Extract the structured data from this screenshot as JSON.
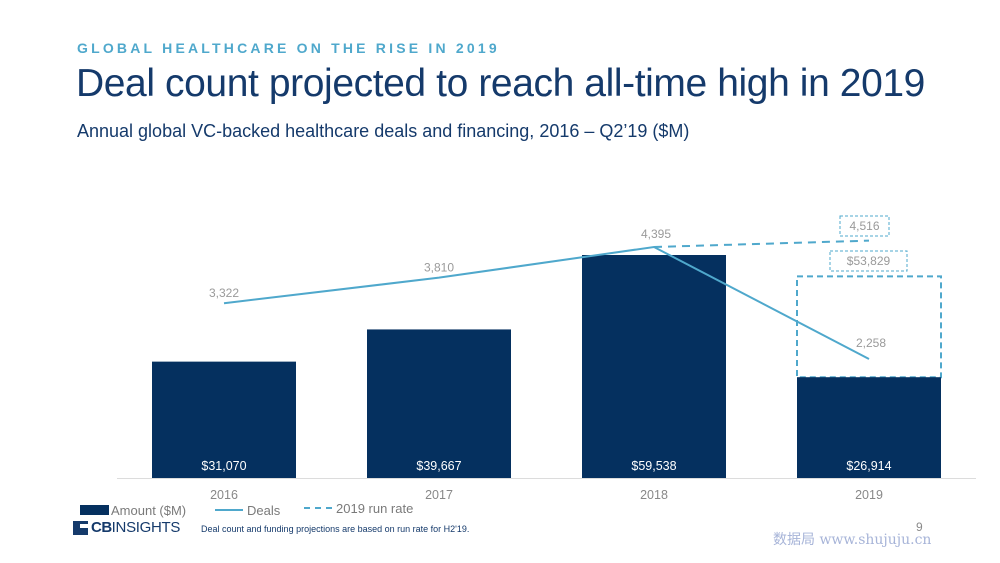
{
  "header": {
    "kicker": "GLOBAL HEALTHCARE ON THE RISE IN 2019",
    "title": "Deal count projected to reach all-time high in 2019",
    "subtitle": "Annual global VC-backed healthcare deals and financing, 2016 – Q2’19 ($M)"
  },
  "chart_data": {
    "type": "bar",
    "categories": [
      "2016",
      "2017",
      "2018",
      "2019"
    ],
    "series": [
      {
        "name": "Amount ($M)",
        "type": "bar",
        "values": [
          31070,
          39667,
          59538,
          26914
        ],
        "labels": [
          "$31,070",
          "$39,667",
          "$59,538",
          "$26,914"
        ]
      },
      {
        "name": "Deals",
        "type": "line",
        "values": [
          3322,
          3810,
          4395,
          2258
        ],
        "labels": [
          "3,322",
          "3,810",
          "4,395",
          "2,258"
        ]
      },
      {
        "name": "2019 run rate",
        "type": "projection",
        "deals": 4516,
        "deals_label": "4,516",
        "amount": 53829,
        "amount_label": "$53,829"
      }
    ],
    "legend_position": "bottom-left",
    "colors": {
      "bar": "#05305f",
      "line": "#4fa8cc",
      "value_label": "#9a9a9a",
      "axis_label": "#888888"
    }
  },
  "legend": {
    "amount": "Amount ($M)",
    "deals": "Deals",
    "run_rate": "2019 run rate"
  },
  "footer": {
    "logo_bold": "CB",
    "logo_regular": "INSIGHTS",
    "note": "Deal count and funding projections are based on run rate for H2'19.",
    "page": "9",
    "watermark": "数据局 www.shujuju.cn"
  }
}
